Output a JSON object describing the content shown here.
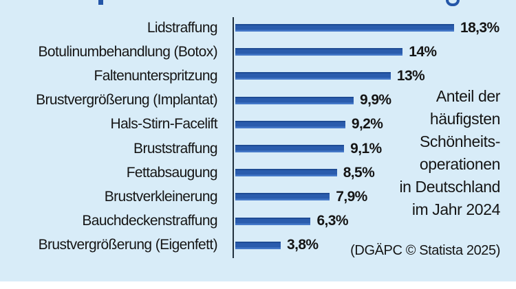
{
  "chart_data": {
    "type": "bar",
    "orientation": "horizontal",
    "categories": [
      "Lidstraffung",
      "Botulinumbehandlung (Botox)",
      "Faltenunterspritzung",
      "Brustvergrößerung (Implantat)",
      "Hals-Stirn-Facelift",
      "Bruststraffung",
      "Fettabsaugung",
      "Brustverkleinerung",
      "Bauchdeckenstraffung",
      "Brustvergrößerung (Eigenfett)"
    ],
    "values": [
      18.3,
      14,
      13,
      9.9,
      9.2,
      9.1,
      8.5,
      7.9,
      6.3,
      3.8
    ],
    "value_labels": [
      "18,3%",
      "14%",
      "13%",
      "9,9%",
      "9,2%",
      "9,1%",
      "8,5%",
      "7,9%",
      "6,3%",
      "3,8%"
    ],
    "unit": "%",
    "xlim": [
      0,
      18.3
    ],
    "grid": false,
    "legend": "none",
    "annotation": "Anteil der\nhäufigsten\nSchönheits-\noperationen\nin Deutschland\nim Jahr 2024",
    "source": "(DGÄPC © Statista 2025)"
  },
  "colors": {
    "background": "#d8ecf8",
    "page": "#ffffff",
    "bar": "#2a5cad",
    "bar_edge_dark": "#1e4b94",
    "bar_edge_light": "#4478c8",
    "axis": "#22303c",
    "text": "#151515",
    "title_accent": "#2456a8"
  }
}
